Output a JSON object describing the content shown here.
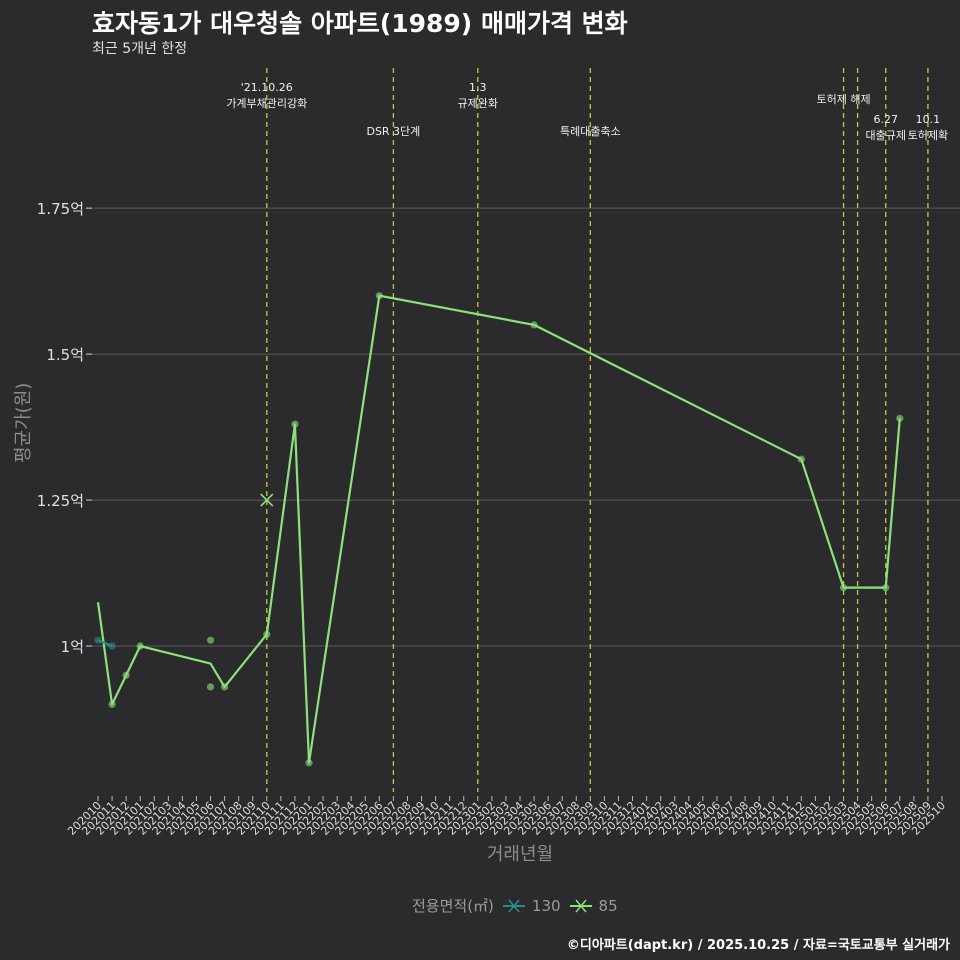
{
  "title": "효자동1가 대우청솔 아파트(1989) 매매가격 변화",
  "subtitle": "최근 5개년 한정",
  "caption": "©디아파트(dapt.kr) / 2025.10.25 / 자료=국토교통부 실거래가",
  "legend": {
    "title": "전용면적(㎡)",
    "items": [
      {
        "label": "130",
        "color": "#2a8c8c"
      },
      {
        "label": "85",
        "color": "#8de07a"
      }
    ]
  },
  "colors": {
    "accent_green": "#8de07a",
    "teal": "#2a8c8c",
    "vline": "#c8c83a",
    "grid": "#5a5a5a"
  },
  "chart_data": {
    "type": "line",
    "title": "효자동1가 대우청솔 아파트(1989) 매매가격 변화",
    "xlabel": "거래년월",
    "ylabel": "평균가(원)",
    "ylim": [
      0.75,
      1.99
    ],
    "y_ticks": [
      {
        "value": 1.0,
        "label": "1억"
      },
      {
        "value": 1.25,
        "label": "1.25억"
      },
      {
        "value": 1.5,
        "label": "1.5억"
      },
      {
        "value": 1.75,
        "label": "1.75억"
      }
    ],
    "categories": [
      "202010",
      "202011",
      "202012",
      "202101",
      "202102",
      "202103",
      "202104",
      "202105",
      "202106",
      "202107",
      "202108",
      "202109",
      "202110",
      "202111",
      "202112",
      "202201",
      "202202",
      "202203",
      "202204",
      "202205",
      "202206",
      "202207",
      "202208",
      "202209",
      "202210",
      "202211",
      "202212",
      "202301",
      "202302",
      "202303",
      "202304",
      "202305",
      "202306",
      "202307",
      "202308",
      "202309",
      "202310",
      "202311",
      "202312",
      "202401",
      "202402",
      "202403",
      "202404",
      "202405",
      "202406",
      "202407",
      "202408",
      "202409",
      "202410",
      "202411",
      "202412",
      "202501",
      "202502",
      "202503",
      "202504",
      "202505",
      "202506",
      "202507",
      "202508",
      "202509",
      "202510"
    ],
    "series": [
      {
        "name": "85",
        "color": "#8de07a",
        "line": [
          [
            0,
            1.075
          ],
          [
            1,
            0.9
          ],
          [
            2,
            0.95
          ],
          [
            3,
            1.0
          ],
          [
            8,
            0.97
          ],
          [
            9,
            0.93
          ],
          [
            12,
            1.02
          ],
          [
            14,
            1.38
          ],
          [
            15,
            0.8
          ],
          [
            20,
            1.6
          ],
          [
            31,
            1.55
          ],
          [
            50,
            1.32
          ],
          [
            53,
            1.1
          ],
          [
            56,
            1.1
          ],
          [
            57,
            1.39
          ]
        ],
        "points": [
          [
            1,
            0.9
          ],
          [
            2,
            0.95
          ],
          [
            3,
            1.0
          ],
          [
            8,
            1.01
          ],
          [
            8,
            0.93
          ],
          [
            9,
            0.93
          ],
          [
            12,
            1.02
          ],
          [
            14,
            1.38
          ],
          [
            15,
            0.8
          ],
          [
            20,
            1.6
          ],
          [
            31,
            1.55
          ],
          [
            50,
            1.32
          ],
          [
            53,
            1.1
          ],
          [
            56,
            1.1
          ],
          [
            57,
            1.39
          ]
        ]
      },
      {
        "name": "130",
        "color": "#2a8c8c",
        "line": [
          [
            0,
            1.01
          ],
          [
            1,
            1.0
          ]
        ],
        "points": [
          [
            0,
            1.01
          ],
          [
            1,
            1.0
          ]
        ]
      }
    ],
    "marker_x": {
      "x": 12,
      "y": 1.25,
      "series": "85"
    },
    "events": [
      {
        "x": 12,
        "line1": "'21.10.26",
        "line2": "가계부채관리강화",
        "row": 0
      },
      {
        "x": 21,
        "line1": "",
        "line2": "DSR 3단계",
        "row": 1
      },
      {
        "x": 27,
        "line1": "1.3",
        "line2": "규제완화",
        "row": 0
      },
      {
        "x": 35,
        "line1": "",
        "line2": "특례대출축소",
        "row": 1
      },
      {
        "x": 53,
        "line1": "",
        "line2": "토허제 해제",
        "row": 0
      },
      {
        "x": 54,
        "line1": "",
        "line2": "",
        "row": 0
      },
      {
        "x": 56,
        "line1": "6.27",
        "line2": "대출규제",
        "row": 1
      },
      {
        "x": 59,
        "line1": "10.1",
        "line2": "토허제확",
        "row": 1
      }
    ]
  }
}
